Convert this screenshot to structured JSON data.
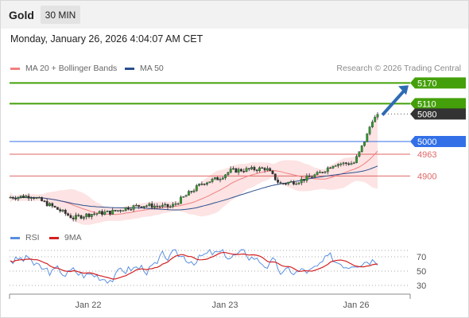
{
  "header": {
    "title": "Gold",
    "timeframe": "30 MIN",
    "datetime": "Monday, January 26, 2026 4:04:07 AM CET"
  },
  "legend": {
    "ma20_label": "MA 20 + Bollinger Bands",
    "ma50_label": "MA 50",
    "credit": "Research © 2026 Trading Central",
    "rsi_label": "RSI",
    "rsi_ma_label": "9MA"
  },
  "colors": {
    "ma20": "#f08080",
    "ma50": "#2a4f8f",
    "band_fill": "#fde3e3",
    "resistance": "#44a00a",
    "pivot": "#3370e8",
    "support": "#e06666",
    "rsi": "#5a8fe0",
    "rsi_ma": "#d42020",
    "arrow": "#2e6bb5",
    "current_price_tag": "#333333"
  },
  "levels": [
    {
      "label": "5170",
      "value": 5170,
      "kind": "resistance"
    },
    {
      "label": "5110",
      "value": 5110,
      "kind": "resistance"
    },
    {
      "label": "5080",
      "value": 5080,
      "kind": "current"
    },
    {
      "label": "5000",
      "value": 5000,
      "kind": "pivot"
    },
    {
      "label": "4963",
      "value": 4963,
      "kind": "support"
    },
    {
      "label": "4900",
      "value": 4900,
      "kind": "support"
    }
  ],
  "rsi_ticks": [
    "70",
    "50",
    "30"
  ],
  "x_ticks": [
    "Jan 22",
    "Jan 23",
    "Jan 26"
  ]
}
